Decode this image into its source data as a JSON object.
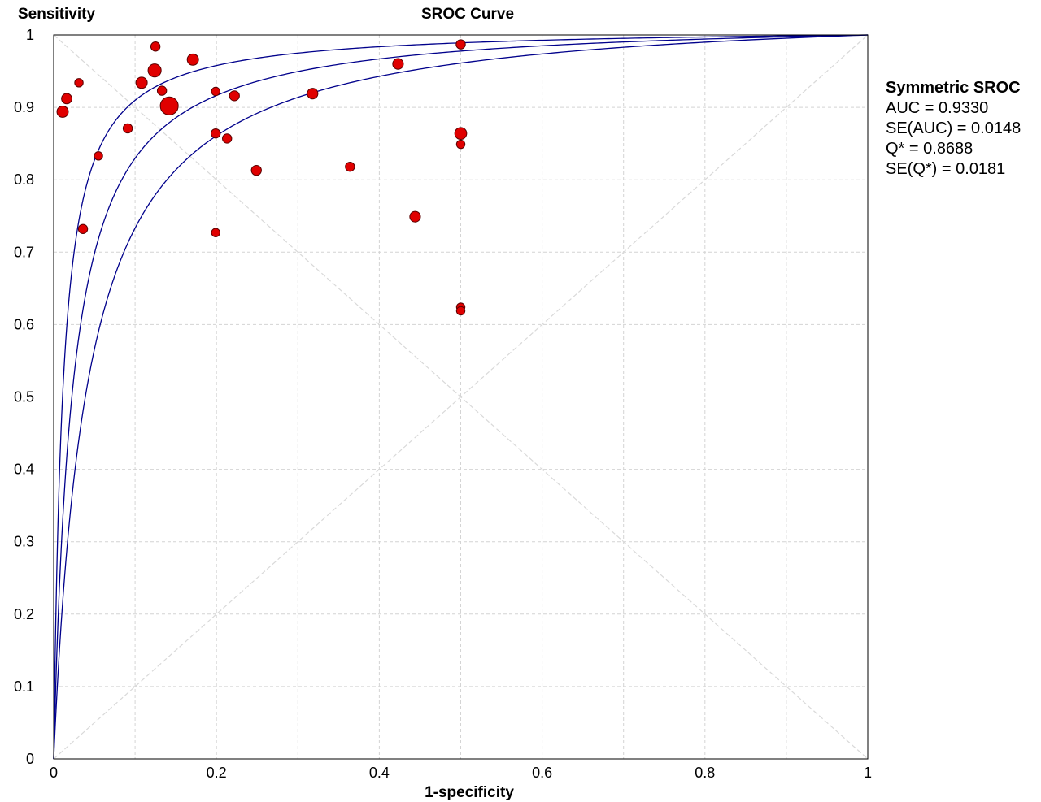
{
  "chart_data": {
    "type": "scatter",
    "title": "SROC Curve",
    "xlabel": "1-specificity",
    "ylabel": "Sensitivity",
    "xlim": [
      0,
      1
    ],
    "ylim": [
      0,
      1
    ],
    "x_ticks": [
      "0",
      "0.2",
      "0.4",
      "0.6",
      "0.8",
      "1"
    ],
    "y_ticks": [
      "0",
      "0.1",
      "0.2",
      "0.3",
      "0.4",
      "0.5",
      "0.6",
      "0.7",
      "0.8",
      "0.9",
      "1"
    ],
    "grid": true,
    "curves": {
      "q_star": 0.8688,
      "se_q_star": 0.0181,
      "color": "#00008b"
    },
    "diagonal_color": "#d9d9d9",
    "point_color": "#e00000",
    "points": [
      {
        "x": 0.011,
        "y": 0.894,
        "weight": 1.8
      },
      {
        "x": 0.016,
        "y": 0.912,
        "weight": 1.5
      },
      {
        "x": 0.031,
        "y": 0.934,
        "weight": 1.0
      },
      {
        "x": 0.036,
        "y": 0.732,
        "weight": 1.2
      },
      {
        "x": 0.055,
        "y": 0.833,
        "weight": 1.0
      },
      {
        "x": 0.091,
        "y": 0.871,
        "weight": 1.2
      },
      {
        "x": 0.108,
        "y": 0.934,
        "weight": 1.8
      },
      {
        "x": 0.124,
        "y": 0.951,
        "weight": 2.4
      },
      {
        "x": 0.125,
        "y": 0.984,
        "weight": 1.2
      },
      {
        "x": 0.133,
        "y": 0.923,
        "weight": 1.2
      },
      {
        "x": 0.142,
        "y": 0.902,
        "weight": 4.5
      },
      {
        "x": 0.171,
        "y": 0.966,
        "weight": 1.8
      },
      {
        "x": 0.199,
        "y": 0.922,
        "weight": 1.0
      },
      {
        "x": 0.199,
        "y": 0.864,
        "weight": 1.2
      },
      {
        "x": 0.199,
        "y": 0.727,
        "weight": 1.0
      },
      {
        "x": 0.213,
        "y": 0.857,
        "weight": 1.2
      },
      {
        "x": 0.222,
        "y": 0.916,
        "weight": 1.4
      },
      {
        "x": 0.249,
        "y": 0.813,
        "weight": 1.4
      },
      {
        "x": 0.318,
        "y": 0.919,
        "weight": 1.6
      },
      {
        "x": 0.364,
        "y": 0.818,
        "weight": 1.2
      },
      {
        "x": 0.423,
        "y": 0.96,
        "weight": 1.6
      },
      {
        "x": 0.444,
        "y": 0.749,
        "weight": 1.6
      },
      {
        "x": 0.5,
        "y": 0.987,
        "weight": 1.2
      },
      {
        "x": 0.5,
        "y": 0.864,
        "weight": 2.0
      },
      {
        "x": 0.5,
        "y": 0.849,
        "weight": 1.0
      },
      {
        "x": 0.5,
        "y": 0.624,
        "weight": 1.0
      },
      {
        "x": 0.5,
        "y": 0.619,
        "weight": 1.0
      }
    ]
  },
  "stats": {
    "title": "Symmetric SROC",
    "auc": "AUC = 0.9330",
    "se_auc": "SE(AUC) = 0.0148",
    "q_star": "Q* = 0.8688",
    "se_q_star": "SE(Q*) = 0.0181"
  }
}
